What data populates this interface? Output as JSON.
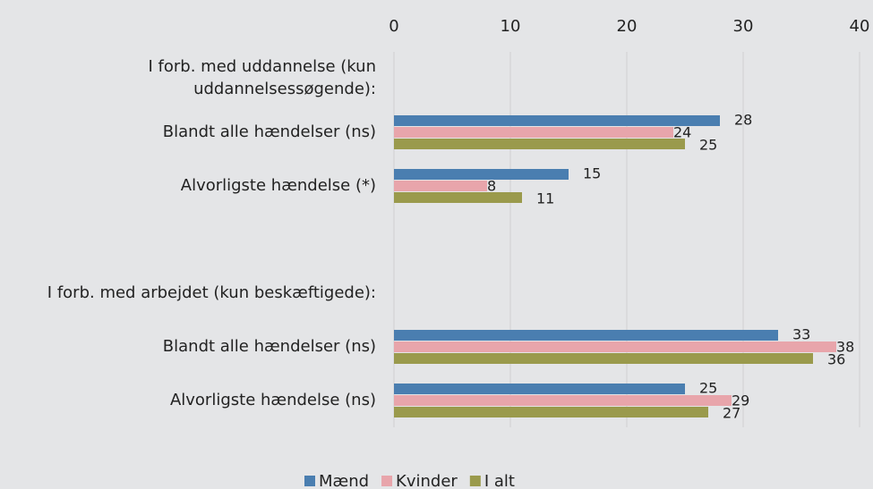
{
  "chart_data": {
    "type": "bar",
    "orientation": "horizontal",
    "categories": [
      "I forb. med uddannelse (kun\nuddannelsessøgende):",
      "Blandt alle hændelser (ns)",
      "Alvorligste hændelse (*)",
      null,
      "I forb. med arbejdet (kun beskæftigede):",
      "Blandt alle hændelser (ns)",
      "Alvorligste hændelse (ns)"
    ],
    "series": [
      {
        "name": "Mænd",
        "color": "#4a7eb0",
        "values": [
          null,
          28,
          15,
          null,
          null,
          33,
          25
        ]
      },
      {
        "name": "Kvinder",
        "color": "#e8a5ab",
        "values": [
          null,
          24,
          8,
          null,
          null,
          38,
          29
        ]
      },
      {
        "name": "I alt",
        "color": "#9a9a4c",
        "values": [
          null,
          25,
          11,
          null,
          null,
          36,
          27
        ]
      }
    ],
    "xlim": [
      0,
      40
    ],
    "xticks": [
      0,
      10,
      20,
      30,
      40
    ],
    "grid": true,
    "legend": "bottom"
  }
}
